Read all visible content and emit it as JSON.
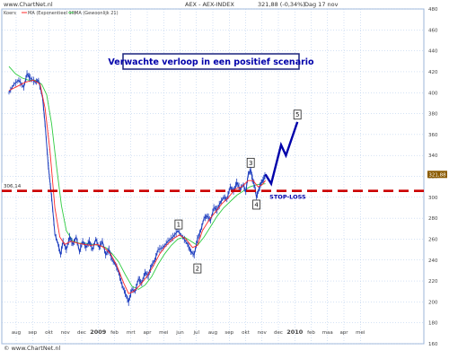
{
  "header": {
    "site": "www.ChartNet.nl",
    "instrument": "AEX - AEX-INDEX",
    "quote": "321,88 (-0,34%)",
    "period": "Dag 17 nov"
  },
  "legend": {
    "koers": "Koers",
    "ma_exp": "MA (Exponentieel 10)",
    "ma_geo": "MA (Gewoonlijk 21)"
  },
  "footer": {
    "site": "© www.ChartNet.nl"
  },
  "colors": {
    "price": "#1f3fbf",
    "ma_exp": "#ff2a2a",
    "ma_geo": "#2ecc40",
    "stoploss": "#cc0000",
    "scenario": "#0000aa",
    "annotation_text": "#0000aa",
    "grid": "#aac4e8"
  },
  "chart_data": {
    "type": "line",
    "title": "Verwachte verloop in een positief scenario",
    "ylim": [
      160,
      480
    ],
    "yticks": [
      160,
      180,
      200,
      220,
      240,
      260,
      280,
      300,
      320,
      340,
      360,
      380,
      400,
      420,
      440,
      460,
      480
    ],
    "ytick_labels": [
      "160",
      "180",
      "200",
      "220",
      "240",
      "260",
      "280",
      "300",
      "320",
      "340",
      "360",
      "380",
      "400",
      "420",
      "440",
      "460",
      "480"
    ],
    "grid": true,
    "xtick_labels": [
      {
        "label": "aug",
        "m": 0
      },
      {
        "label": "sep",
        "m": 1
      },
      {
        "label": "okt",
        "m": 2
      },
      {
        "label": "nov",
        "m": 3
      },
      {
        "label": "dec",
        "m": 4
      },
      {
        "label": "2009",
        "m": 5,
        "bold": true
      },
      {
        "label": "feb",
        "m": 6
      },
      {
        "label": "mrt",
        "m": 7
      },
      {
        "label": "apr",
        "m": 8
      },
      {
        "label": "mei",
        "m": 9
      },
      {
        "label": "jun",
        "m": 10
      },
      {
        "label": "jul",
        "m": 11
      },
      {
        "label": "aug",
        "m": 12
      },
      {
        "label": "sep",
        "m": 13
      },
      {
        "label": "okt",
        "m": 14
      },
      {
        "label": "nov",
        "m": 15
      },
      {
        "label": "dec",
        "m": 16
      },
      {
        "label": "2010",
        "m": 17,
        "bold": true
      },
      {
        "label": "feb",
        "m": 18
      },
      {
        "label": "maa",
        "m": 19
      },
      {
        "label": "apr",
        "m": 20
      },
      {
        "label": "mei",
        "m": 21
      }
    ],
    "price_series": {
      "name": "Koers",
      "points": [
        [
          0,
          400
        ],
        [
          0.3,
          408
        ],
        [
          0.6,
          412
        ],
        [
          0.9,
          405
        ],
        [
          1.1,
          418
        ],
        [
          1.3,
          414
        ],
        [
          1.6,
          410
        ],
        [
          1.8,
          412
        ],
        [
          2.05,
          395
        ],
        [
          2.2,
          370
        ],
        [
          2.4,
          330
        ],
        [
          2.6,
          300
        ],
        [
          2.8,
          265
        ],
        [
          3.0,
          255
        ],
        [
          3.15,
          245
        ],
        [
          3.3,
          258
        ],
        [
          3.5,
          250
        ],
        [
          3.7,
          262
        ],
        [
          3.9,
          255
        ],
        [
          4.1,
          262
        ],
        [
          4.3,
          248
        ],
        [
          4.5,
          258
        ],
        [
          4.7,
          252
        ],
        [
          4.9,
          258
        ],
        [
          5.1,
          250
        ],
        [
          5.3,
          260
        ],
        [
          5.5,
          252
        ],
        [
          5.7,
          258
        ],
        [
          5.9,
          245
        ],
        [
          6.1,
          250
        ],
        [
          6.3,
          240
        ],
        [
          6.5,
          236
        ],
        [
          6.7,
          228
        ],
        [
          6.9,
          216
        ],
        [
          7.1,
          208
        ],
        [
          7.3,
          200
        ],
        [
          7.5,
          212
        ],
        [
          7.7,
          210
        ],
        [
          7.9,
          222
        ],
        [
          8.1,
          218
        ],
        [
          8.3,
          228
        ],
        [
          8.5,
          225
        ],
        [
          8.7,
          235
        ],
        [
          8.9,
          240
        ],
        [
          9.1,
          250
        ],
        [
          9.4,
          252
        ],
        [
          9.7,
          258
        ],
        [
          10.0,
          262
        ],
        [
          10.3,
          268
        ],
        [
          10.6,
          262
        ],
        [
          10.9,
          255
        ],
        [
          11.1,
          248
        ],
        [
          11.3,
          245
        ],
        [
          11.5,
          260
        ],
        [
          11.7,
          268
        ],
        [
          11.9,
          280
        ],
        [
          12.1,
          282
        ],
        [
          12.3,
          278
        ],
        [
          12.5,
          290
        ],
        [
          12.7,
          288
        ],
        [
          12.9,
          295
        ],
        [
          13.1,
          300
        ],
        [
          13.3,
          298
        ],
        [
          13.5,
          310
        ],
        [
          13.7,
          306
        ],
        [
          13.9,
          314
        ],
        [
          14.1,
          308
        ],
        [
          14.3,
          312
        ],
        [
          14.45,
          305
        ],
        [
          14.6,
          322
        ],
        [
          14.75,
          326
        ],
        [
          14.85,
          318
        ],
        [
          15.0,
          310
        ],
        [
          15.1,
          300
        ],
        [
          15.25,
          308
        ],
        [
          15.4,
          314
        ],
        [
          15.55,
          318
        ],
        [
          15.65,
          321.88
        ]
      ]
    },
    "ma_exp_series": {
      "name": "MA (Exponentieel 10)",
      "points": [
        [
          0,
          402
        ],
        [
          0.5,
          406
        ],
        [
          1.0,
          410
        ],
        [
          1.5,
          412
        ],
        [
          1.9,
          408
        ],
        [
          2.2,
          385
        ],
        [
          2.5,
          345
        ],
        [
          2.8,
          290
        ],
        [
          3.1,
          262
        ],
        [
          3.4,
          255
        ],
        [
          3.8,
          258
        ],
        [
          4.2,
          256
        ],
        [
          4.6,
          255
        ],
        [
          5.0,
          254
        ],
        [
          5.4,
          255
        ],
        [
          5.8,
          252
        ],
        [
          6.2,
          246
        ],
        [
          6.6,
          234
        ],
        [
          7.0,
          218
        ],
        [
          7.3,
          208
        ],
        [
          7.6,
          210
        ],
        [
          8.0,
          216
        ],
        [
          8.4,
          224
        ],
        [
          8.8,
          234
        ],
        [
          9.2,
          246
        ],
        [
          9.6,
          254
        ],
        [
          10.0,
          260
        ],
        [
          10.4,
          264
        ],
        [
          10.8,
          260
        ],
        [
          11.2,
          252
        ],
        [
          11.5,
          254
        ],
        [
          11.8,
          268
        ],
        [
          12.2,
          278
        ],
        [
          12.6,
          286
        ],
        [
          13.0,
          294
        ],
        [
          13.4,
          300
        ],
        [
          13.8,
          308
        ],
        [
          14.2,
          310
        ],
        [
          14.6,
          316
        ],
        [
          14.9,
          316
        ],
        [
          15.2,
          310
        ],
        [
          15.45,
          312
        ],
        [
          15.65,
          316
        ]
      ]
    },
    "ma_geo_series": {
      "name": "MA (Gewoonlijk 21)",
      "points": [
        [
          0,
          425
        ],
        [
          0.4,
          418
        ],
        [
          0.8,
          414
        ],
        [
          1.2,
          412
        ],
        [
          1.6,
          412
        ],
        [
          2.0,
          408
        ],
        [
          2.3,
          398
        ],
        [
          2.6,
          370
        ],
        [
          2.9,
          330
        ],
        [
          3.2,
          292
        ],
        [
          3.5,
          268
        ],
        [
          3.9,
          258
        ],
        [
          4.3,
          256
        ],
        [
          4.7,
          256
        ],
        [
          5.1,
          255
        ],
        [
          5.5,
          254
        ],
        [
          5.9,
          252
        ],
        [
          6.3,
          246
        ],
        [
          6.7,
          238
        ],
        [
          7.1,
          226
        ],
        [
          7.5,
          215
        ],
        [
          7.9,
          212
        ],
        [
          8.3,
          216
        ],
        [
          8.7,
          224
        ],
        [
          9.1,
          236
        ],
        [
          9.5,
          246
        ],
        [
          9.9,
          254
        ],
        [
          10.3,
          260
        ],
        [
          10.7,
          262
        ],
        [
          11.1,
          258
        ],
        [
          11.5,
          254
        ],
        [
          11.9,
          262
        ],
        [
          12.3,
          272
        ],
        [
          12.7,
          282
        ],
        [
          13.1,
          290
        ],
        [
          13.5,
          296
        ],
        [
          13.9,
          302
        ],
        [
          14.3,
          306
        ],
        [
          14.7,
          310
        ],
        [
          15.1,
          312
        ],
        [
          15.65,
          313
        ]
      ]
    },
    "stoploss_level": 306.14,
    "stoploss_label": "306,14",
    "last_value_label": "321,88",
    "scenario_points": [
      [
        15.65,
        322
      ],
      [
        16.0,
        313
      ],
      [
        16.6,
        350
      ],
      [
        16.9,
        340
      ],
      [
        17.6,
        372
      ]
    ],
    "wave_labels": [
      {
        "label": "1",
        "m": 10.35,
        "v": 274
      },
      {
        "label": "2",
        "m": 11.5,
        "v": 232
      },
      {
        "label": "3",
        "m": 14.75,
        "v": 333
      },
      {
        "label": "4",
        "m": 15.1,
        "v": 293
      },
      {
        "label": "5",
        "m": 17.6,
        "v": 379
      }
    ],
    "annotations": {
      "stoploss_text": "STOP-LOSS"
    }
  }
}
